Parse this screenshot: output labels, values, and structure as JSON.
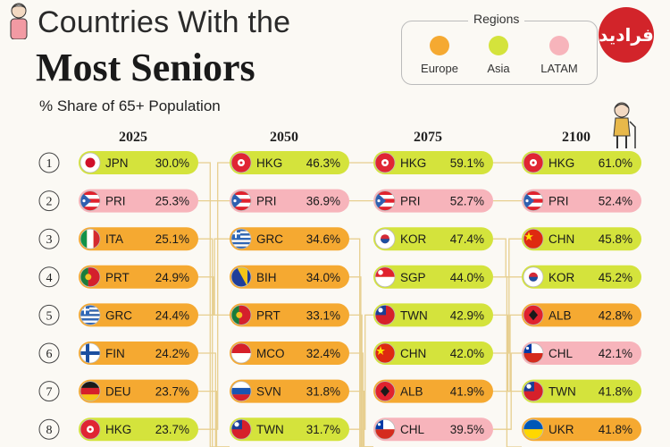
{
  "title_line1": "Countries With the",
  "title_line2": "Most Seniors",
  "subtitle": "% Share of 65+ Population",
  "logo_text": "فرادید",
  "legend": {
    "title": "Regions",
    "items": [
      {
        "label": "Europe",
        "color": "#f5a931"
      },
      {
        "label": "Asia",
        "color": "#d4e33c"
      },
      {
        "label": "LATAM",
        "color": "#f7b4bb"
      }
    ]
  },
  "chart_data": {
    "type": "table",
    "title": "Countries With the Most Seniors",
    "subtitle": "% Share of 65+ Population",
    "ranks": [
      1,
      2,
      3,
      4,
      5,
      6,
      7,
      8
    ],
    "columns": [
      {
        "year": "2025",
        "rows": [
          {
            "code": "JPN",
            "value": 30.0,
            "label": "30.0%",
            "region": "Asia"
          },
          {
            "code": "PRI",
            "value": 25.3,
            "label": "25.3%",
            "region": "LATAM"
          },
          {
            "code": "ITA",
            "value": 25.1,
            "label": "25.1%",
            "region": "Europe"
          },
          {
            "code": "PRT",
            "value": 24.9,
            "label": "24.9%",
            "region": "Europe"
          },
          {
            "code": "GRC",
            "value": 24.4,
            "label": "24.4%",
            "region": "Europe"
          },
          {
            "code": "FIN",
            "value": 24.2,
            "label": "24.2%",
            "region": "Europe"
          },
          {
            "code": "DEU",
            "value": 23.7,
            "label": "23.7%",
            "region": "Europe"
          },
          {
            "code": "HKG",
            "value": 23.7,
            "label": "23.7%",
            "region": "Asia"
          }
        ]
      },
      {
        "year": "2050",
        "rows": [
          {
            "code": "HKG",
            "value": 46.3,
            "label": "46.3%",
            "region": "Asia"
          },
          {
            "code": "PRI",
            "value": 36.9,
            "label": "36.9%",
            "region": "LATAM"
          },
          {
            "code": "GRC",
            "value": 34.6,
            "label": "34.6%",
            "region": "Europe"
          },
          {
            "code": "BIH",
            "value": 34.0,
            "label": "34.0%",
            "region": "Europe"
          },
          {
            "code": "PRT",
            "value": 33.1,
            "label": "33.1%",
            "region": "Europe"
          },
          {
            "code": "MCO",
            "value": 32.4,
            "label": "32.4%",
            "region": "Europe"
          },
          {
            "code": "SVN",
            "value": 31.8,
            "label": "31.8%",
            "region": "Europe"
          },
          {
            "code": "TWN",
            "value": 31.7,
            "label": "31.7%",
            "region": "Asia"
          }
        ]
      },
      {
        "year": "2075",
        "rows": [
          {
            "code": "HKG",
            "value": 59.1,
            "label": "59.1%",
            "region": "Asia"
          },
          {
            "code": "PRI",
            "value": 52.7,
            "label": "52.7%",
            "region": "LATAM"
          },
          {
            "code": "KOR",
            "value": 47.4,
            "label": "47.4%",
            "region": "Asia"
          },
          {
            "code": "SGP",
            "value": 44.0,
            "label": "44.0%",
            "region": "Asia"
          },
          {
            "code": "TWN",
            "value": 42.9,
            "label": "42.9%",
            "region": "Asia"
          },
          {
            "code": "CHN",
            "value": 42.0,
            "label": "42.0%",
            "region": "Asia"
          },
          {
            "code": "ALB",
            "value": 41.9,
            "label": "41.9%",
            "region": "Europe"
          },
          {
            "code": "CHL",
            "value": 39.5,
            "label": "39.5%",
            "region": "LATAM"
          }
        ]
      },
      {
        "year": "2100",
        "rows": [
          {
            "code": "HKG",
            "value": 61.0,
            "label": "61.0%",
            "region": "Asia"
          },
          {
            "code": "PRI",
            "value": 52.4,
            "label": "52.4%",
            "region": "LATAM"
          },
          {
            "code": "CHN",
            "value": 45.8,
            "label": "45.8%",
            "region": "Asia"
          },
          {
            "code": "KOR",
            "value": 45.2,
            "label": "45.2%",
            "region": "Asia"
          },
          {
            "code": "ALB",
            "value": 42.8,
            "label": "42.8%",
            "region": "Europe"
          },
          {
            "code": "CHL",
            "value": 42.1,
            "label": "42.1%",
            "region": "LATAM"
          },
          {
            "code": "TWN",
            "value": 41.8,
            "label": "41.8%",
            "region": "Asia"
          },
          {
            "code": "UKR",
            "value": 41.8,
            "label": "41.8%",
            "region": "Europe"
          }
        ]
      }
    ]
  }
}
